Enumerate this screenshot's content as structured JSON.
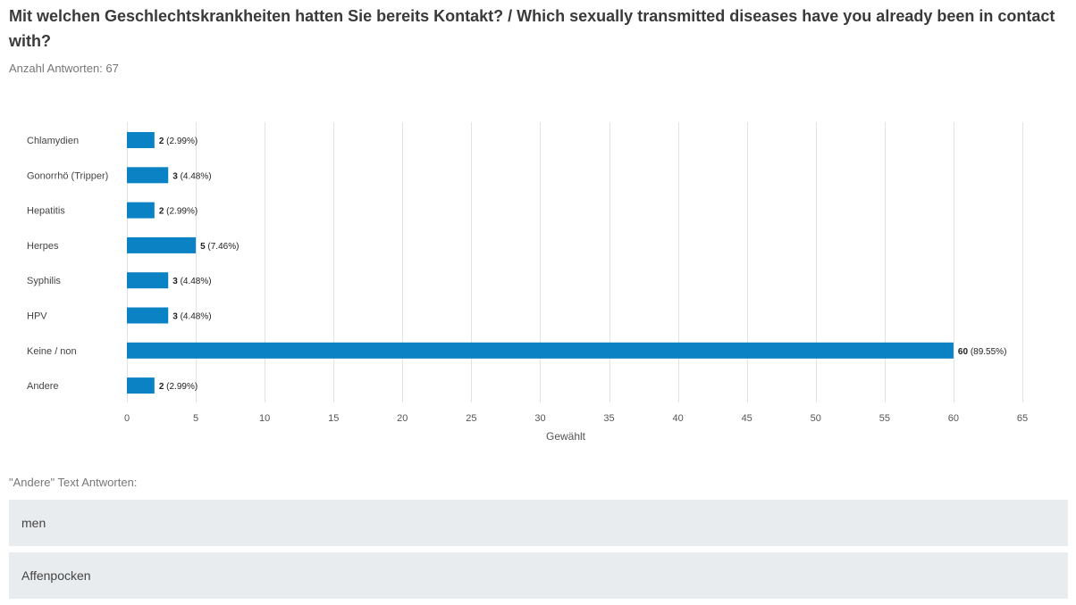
{
  "question": {
    "title": "Mit welchen Geschlechtskrankheiten hatten Sie bereits Kontakt? / Which sexually transmitted diseases have you already been in contact with?",
    "answer_count": "Anzahl Antworten: 67"
  },
  "chart_data": {
    "type": "bar",
    "orientation": "horizontal",
    "categories": [
      "Chlamydien",
      "Gonorrhö (Tripper)",
      "Hepatitis",
      "Herpes",
      "Syphilis",
      "HPV",
      "Keine / non",
      "Andere"
    ],
    "values": [
      2,
      3,
      2,
      5,
      3,
      3,
      60,
      2
    ],
    "value_labels": [
      "2",
      "3",
      "2",
      "5",
      "3",
      "3",
      "60",
      "2"
    ],
    "percent_labels": [
      "(2.99%)",
      "(4.48%)",
      "(2.99%)",
      "(7.46%)",
      "(4.48%)",
      "(4.48%)",
      "(89.55%)",
      "(2.99%)"
    ],
    "xlabel": "Gewählt",
    "xlim": [
      0,
      65
    ],
    "xticks": [
      0,
      5,
      10,
      15,
      20,
      25,
      30,
      35,
      40,
      45,
      50,
      55,
      60,
      65
    ],
    "grid": true,
    "bar_color": "#0a82c4",
    "grid_color": "#e3e3e3"
  },
  "other_answers": {
    "label": "\"Andere\" Text Antworten:",
    "items": [
      "men",
      "Affenpocken"
    ]
  }
}
